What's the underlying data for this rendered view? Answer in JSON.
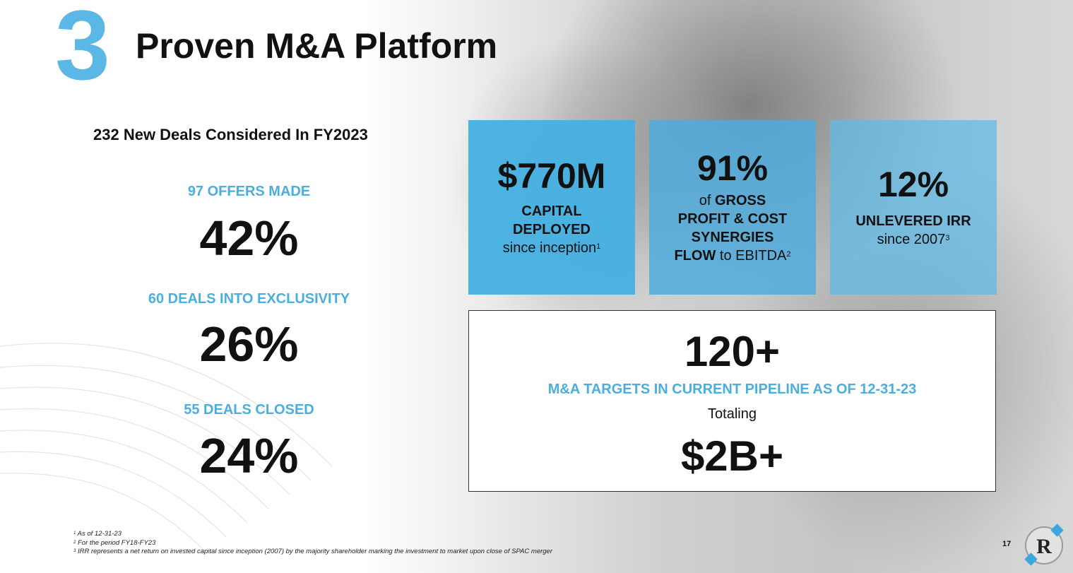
{
  "header": {
    "section_number": "3",
    "title": "Proven M&A Platform"
  },
  "left": {
    "subhead": "232 New Deals Considered In FY2023",
    "stats": [
      {
        "label": "97 OFFERS MADE",
        "pct": "42%"
      },
      {
        "label": "60 DEALS INTO EXCLUSIVITY",
        "pct": "26%"
      },
      {
        "label": "55 DEALS CLOSED",
        "pct": "24%"
      }
    ]
  },
  "boxes": {
    "capital": {
      "value": "$770M",
      "line1": "CAPITAL",
      "line2": "DEPLOYED",
      "line3": "since inception",
      "sup": "1"
    },
    "synergies": {
      "value": "91%",
      "of": "of",
      "line1_bold": "GROSS",
      "line2": "PROFIT & COST",
      "line3": "SYNERGIES",
      "line4_bold": "FLOW",
      "line4_rest": "to EBITDA",
      "sup": "2"
    },
    "irr": {
      "value": "12%",
      "line1": "UNLEVERED IRR",
      "line2": "since 2007",
      "sup": "3"
    }
  },
  "pipeline": {
    "value": "120+",
    "label": "M&A TARGETS IN CURRENT PIPELINE AS OF 12-31-23",
    "sub": "Totaling",
    "total": "$2B+"
  },
  "footnotes": [
    {
      "num": "1",
      "text": "As of 12-31-23"
    },
    {
      "num": "2",
      "text": "For the period FY18-FY23"
    },
    {
      "num": "3",
      "text": "IRR represents a net return on invested capital since inception (2007) by the majority shareholder marking the investment to market upon close of SPAC merger"
    }
  ],
  "page_number": "17",
  "logo_letter": "R",
  "colors": {
    "accent": "#5bb8e6",
    "label_blue": "#4aaedf",
    "text": "#111111"
  }
}
